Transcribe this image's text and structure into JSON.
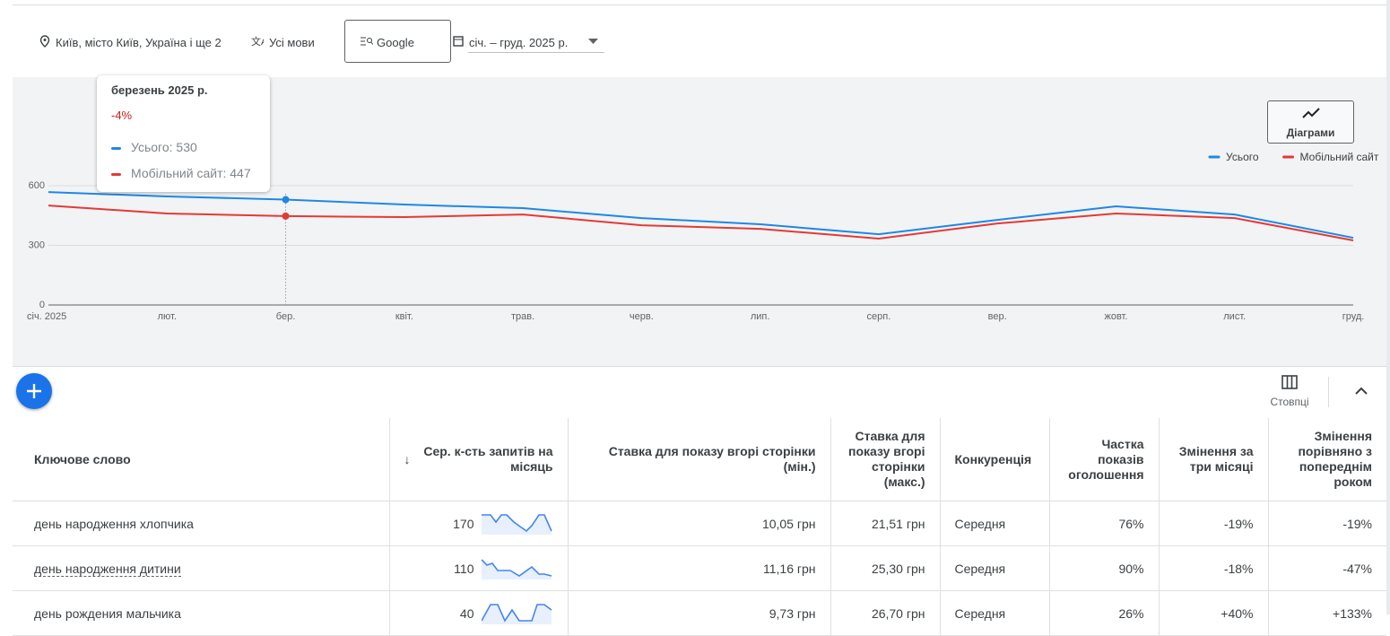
{
  "toolbar": {
    "location": "Київ, місто Київ, Україна і ще 2",
    "language": "Усі мови",
    "network": "Google",
    "date_range": "січ. – груд. 2025 р."
  },
  "chart_data": {
    "type": "line",
    "button": "Діаграми",
    "categories": [
      "січ. 2025",
      "лют.",
      "бер.",
      "квіт.",
      "трав.",
      "черв.",
      "лип.",
      "серп.",
      "вер.",
      "жовт.",
      "лист.",
      "груд."
    ],
    "series": [
      {
        "name": "Усього",
        "color": "#1e88e5",
        "values": [
          568,
          546,
          530,
          505,
          487,
          437,
          406,
          356,
          428,
          496,
          455,
          338
        ]
      },
      {
        "name": "Мобільний сайт",
        "color": "#e53935",
        "values": [
          500,
          460,
          447,
          442,
          455,
          401,
          383,
          334,
          410,
          460,
          437,
          325
        ]
      }
    ],
    "ylim": [
      0,
      600
    ],
    "yticks": [
      0,
      300,
      600
    ],
    "grid": true,
    "legend": "top-right",
    "tooltip": {
      "title": "березень 2025 р.",
      "change": "-4%",
      "rows": [
        "Усього: 530",
        "Мобільний сайт: 447"
      ]
    }
  },
  "table": {
    "columns_button": "Стовпці",
    "headers": [
      "Ключове слово",
      "Сер. к-сть запитів на місяць",
      "Ставка для показу вгорі сторінки (мін.)",
      "Ставка для показу вгорі сторінки (макс.)",
      "Конкуренція",
      "Частка показів оголошення",
      "Змінення за три місяці",
      "Змінення порівняно з попереднім роком"
    ],
    "rows": [
      [
        "день народження хлопчика",
        170,
        "10,05 грн",
        "21,51 грн",
        "Середня",
        "76%",
        "-19%",
        "-19%"
      ],
      [
        "день народження дитини",
        110,
        "11,16 грн",
        "25,30 грн",
        "Середня",
        "90%",
        "-18%",
        "-47%"
      ],
      [
        "день рождения мальчика",
        40,
        "9,73 грн",
        "26,70 грн",
        "Середня",
        "26%",
        "+40%",
        "+133%"
      ]
    ]
  }
}
